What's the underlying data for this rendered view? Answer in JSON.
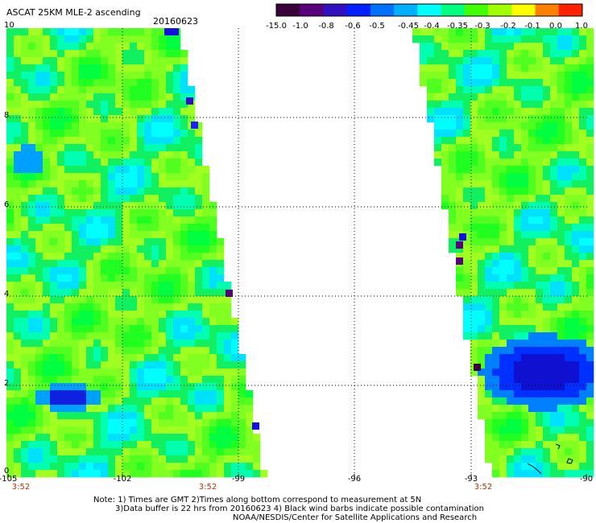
{
  "title": "ASCAT 25KM MLE-2 ascending",
  "date": "20160623",
  "colorbar": {
    "labels": [
      "-15.0",
      "-1.0",
      "-0.8",
      "-0.6",
      "-0.5",
      "-0.45",
      "-0.4",
      "-0.35",
      "-0.3",
      "-0.2",
      "-0.1",
      "0.0",
      "1.0"
    ],
    "colors": [
      "#3a003a",
      "#5a007a",
      "#3010c0",
      "#0020ff",
      "#0070ff",
      "#00b0ff",
      "#00ffff",
      "#00ff80",
      "#40ff00",
      "#a0ff00",
      "#ffff00",
      "#ff8000",
      "#ff2000"
    ]
  },
  "map": {
    "lat_labels": [
      "10",
      "8",
      "6",
      "4",
      "2",
      "0"
    ],
    "lon_labels": [
      "-105",
      "-102",
      "-99",
      "-96",
      "-93",
      "-90"
    ],
    "time_labels": [
      "3:52",
      "3:52",
      "3:52"
    ]
  },
  "notes": {
    "line1": "Note: 1) Times are GMT 2)Times along bottom correspond to measurement at 5N",
    "line2": "3)Data buffer is 22 hrs from 20160623 4) Black wind barbs indicate possible contamination",
    "line3": "NOAA/NESDIS/Center for Satellite Applications and Research"
  }
}
